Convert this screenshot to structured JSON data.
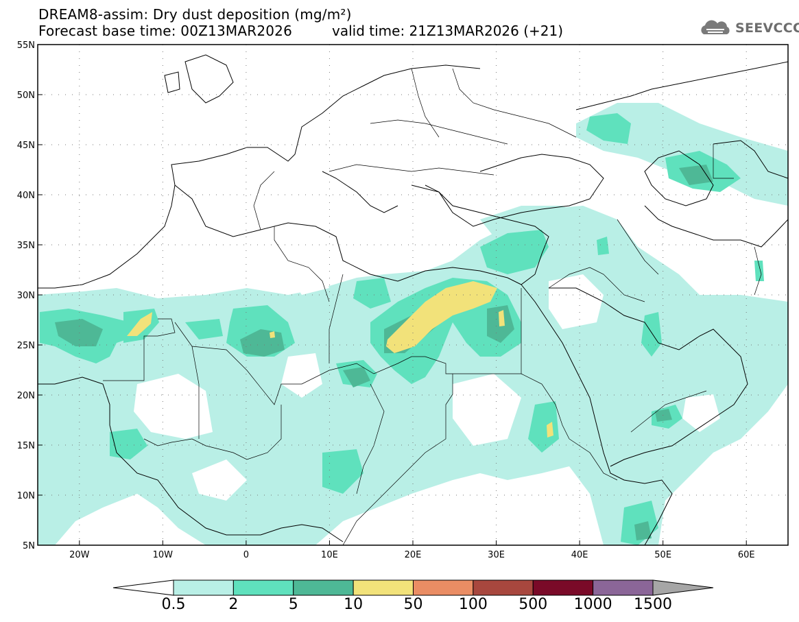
{
  "title": {
    "line1": "DREAM8-assim: Dry dust deposition (mg/m²)",
    "line2_left": "Forecast base time: 00Z13MAR2026",
    "line2_right": "valid time: 21Z13MAR2026 (+21)"
  },
  "logo": {
    "text": "SEEVCCC",
    "icon": "cloud-icon"
  },
  "map": {
    "lon_range": [
      -25,
      65
    ],
    "lat_range": [
      5,
      55
    ],
    "lat_ticks": [
      {
        "value": 55,
        "label": "55N"
      },
      {
        "value": 50,
        "label": "50N"
      },
      {
        "value": 45,
        "label": "45N"
      },
      {
        "value": 40,
        "label": "40N"
      },
      {
        "value": 35,
        "label": "35N"
      },
      {
        "value": 30,
        "label": "30N"
      },
      {
        "value": 25,
        "label": "25N"
      },
      {
        "value": 20,
        "label": "20N"
      },
      {
        "value": 15,
        "label": "15N"
      },
      {
        "value": 10,
        "label": "10N"
      },
      {
        "value": 5,
        "label": "5N"
      }
    ],
    "lon_ticks": [
      {
        "value": -20,
        "label": "20W"
      },
      {
        "value": -10,
        "label": "10W"
      },
      {
        "value": 0,
        "label": "0"
      },
      {
        "value": 10,
        "label": "10E"
      },
      {
        "value": 20,
        "label": "20E"
      },
      {
        "value": 30,
        "label": "30E"
      },
      {
        "value": 40,
        "label": "40E"
      },
      {
        "value": 50,
        "label": "50E"
      },
      {
        "value": 60,
        "label": "60E"
      }
    ],
    "grid": "dotted"
  },
  "colorbar": {
    "labels": [
      "0.5",
      "2",
      "5",
      "10",
      "50",
      "100",
      "500",
      "1000",
      "1500"
    ],
    "colors": [
      "#ffffff",
      "#b9efe6",
      "#5fe1bd",
      "#4eb896",
      "#f2e27a",
      "#ea8d64",
      "#a8473e",
      "#7a0a28",
      "#8b6698",
      "#a6a6a6"
    ]
  },
  "palette": {
    "level1": "#b9efe6",
    "level2": "#5fe1bd",
    "level3": "#4eb896",
    "level4": "#f2e27a"
  }
}
